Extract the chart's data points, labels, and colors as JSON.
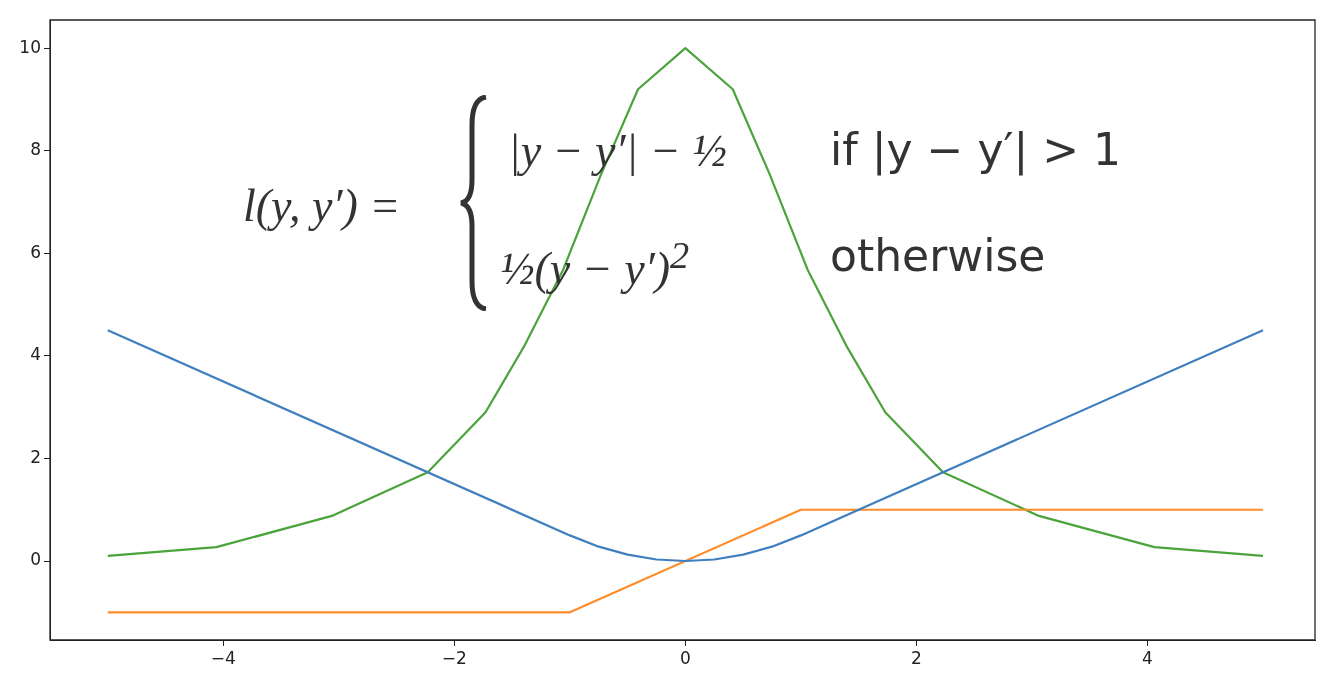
{
  "chart_data": {
    "type": "line",
    "xlim": [
      -5.5,
      5.45
    ],
    "ylim": [
      -1.54,
      10.55
    ],
    "xticks": [
      -4,
      -2,
      0,
      2,
      4
    ],
    "yticks": [
      0,
      2,
      4,
      6,
      8,
      10
    ],
    "grid": false,
    "legend": false,
    "marker": "none",
    "line_style": "solid",
    "annotations": [
      "l(y, y′) =",
      "|y − y′| − ½",
      "if |y − y′| > 1",
      "½(y − y′)$^{2}$",
      "otherwise"
    ],
    "series": [
      {
        "color": "#3f7fbf",
        "x": [
          -5,
          -1,
          -0.75,
          -0.5,
          -0.25,
          0,
          0.25,
          0.5,
          0.75,
          1,
          5
        ],
        "values": [
          4.5,
          0.5,
          0.28,
          0.125,
          0.03,
          0,
          0.03,
          0.125,
          0.28,
          0.5,
          4.5
        ]
      },
      {
        "color": "#ff8c28",
        "x": [
          -5,
          -1,
          1,
          5
        ],
        "values": [
          -1,
          -1,
          1,
          1
        ]
      },
      {
        "color": "#4ba33b",
        "x": [
          -5,
          -4.06,
          -3.06,
          -2.23,
          -1.73,
          -1.4,
          -1.06,
          -0.73,
          -0.41,
          0,
          0.41,
          0.73,
          1.06,
          1.4,
          1.73,
          2.23,
          3.06,
          4.06,
          5
        ],
        "values": [
          0.1,
          0.27,
          0.88,
          1.73,
          2.9,
          4.17,
          5.67,
          7.54,
          9.2,
          10,
          9.2,
          7.54,
          5.67,
          4.17,
          2.9,
          1.73,
          0.88,
          0.27,
          0.1
        ]
      }
    ]
  }
}
